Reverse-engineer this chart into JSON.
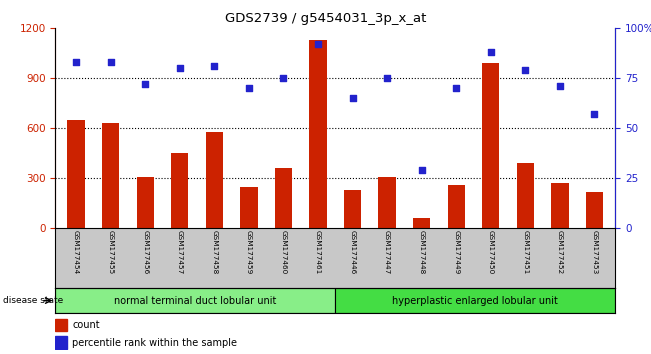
{
  "title": "GDS2739 / g5454031_3p_x_at",
  "samples": [
    "GSM177454",
    "GSM177455",
    "GSM177456",
    "GSM177457",
    "GSM177458",
    "GSM177459",
    "GSM177460",
    "GSM177461",
    "GSM177446",
    "GSM177447",
    "GSM177448",
    "GSM177449",
    "GSM177450",
    "GSM177451",
    "GSM177452",
    "GSM177453"
  ],
  "counts": [
    650,
    630,
    310,
    450,
    575,
    245,
    360,
    1130,
    230,
    310,
    60,
    260,
    990,
    390,
    270,
    215
  ],
  "percentiles": [
    83,
    83,
    72,
    80,
    81,
    70,
    75,
    92,
    65,
    75,
    29,
    70,
    88,
    79,
    71,
    57
  ],
  "group1_label": "normal terminal duct lobular unit",
  "group2_label": "hyperplastic enlarged lobular unit",
  "group1_count": 8,
  "group2_count": 8,
  "ylim_left": [
    0,
    1200
  ],
  "ylim_right": [
    0,
    100
  ],
  "yticks_left": [
    0,
    300,
    600,
    900,
    1200
  ],
  "yticks_right": [
    0,
    25,
    50,
    75,
    100
  ],
  "bar_color": "#cc2200",
  "dot_color": "#2222cc",
  "group1_color": "#88ee88",
  "group2_color": "#44dd44",
  "tick_label_color_left": "#cc2200",
  "tick_label_color_right": "#2222cc",
  "bar_width": 0.5,
  "disease_state_label": "disease state",
  "legend_count_label": "count",
  "legend_pct_label": "percentile rank within the sample",
  "bg_color": "#ffffff",
  "xlabel_area_color": "#c8c8c8",
  "dotted_line_color": "#555555",
  "ytick_right_labels": [
    "0",
    "25",
    "50",
    "75",
    "100%"
  ]
}
